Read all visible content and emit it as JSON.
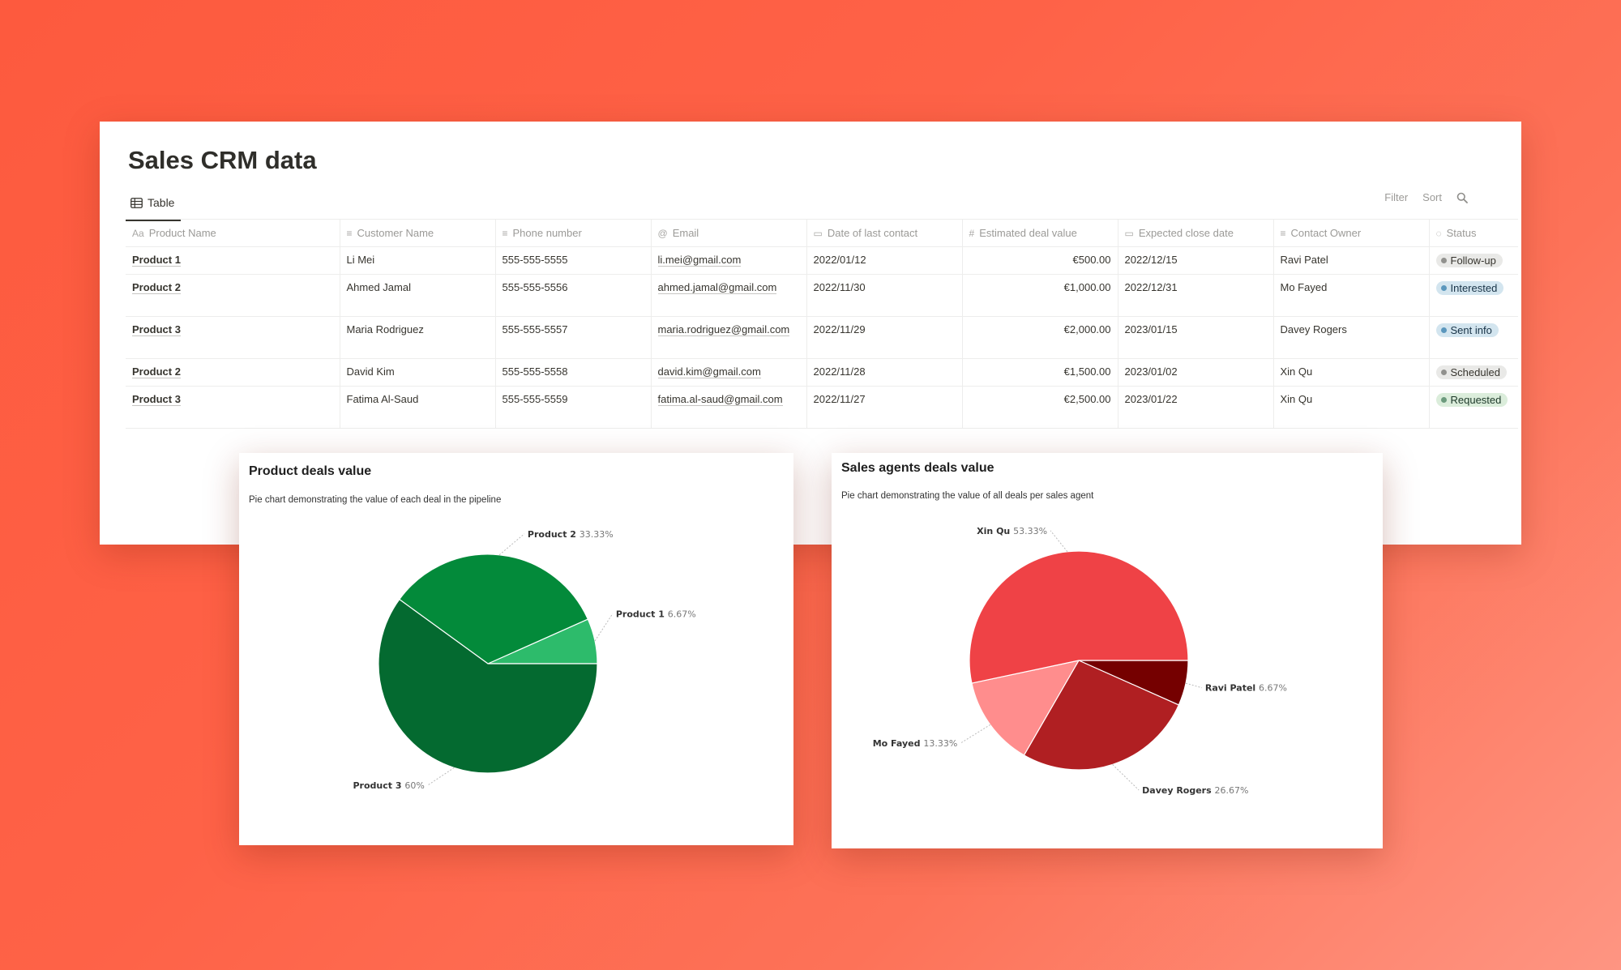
{
  "database": {
    "title": "Sales CRM data",
    "view_tab": "Table",
    "toolbar": {
      "filter": "Filter",
      "sort": "Sort",
      "search_icon": "search-icon"
    },
    "columns": [
      {
        "label": "Product Name",
        "icon": "Aa"
      },
      {
        "label": "Customer Name",
        "icon": "text-icon"
      },
      {
        "label": "Phone number",
        "icon": "text-icon"
      },
      {
        "label": "Email",
        "icon": "@"
      },
      {
        "label": "Date of last contact",
        "icon": "calendar-icon"
      },
      {
        "label": "Estimated deal value",
        "icon": "#"
      },
      {
        "label": "Expected close date",
        "icon": "calendar-icon"
      },
      {
        "label": "Contact Owner",
        "icon": "text-icon"
      },
      {
        "label": "Status",
        "icon": "status-icon"
      }
    ],
    "rows": [
      {
        "product": "Product 1",
        "customer": "Li Mei",
        "phone": "555-555-5555",
        "email": "li.mei@gmail.com",
        "last_contact": "2022/01/12",
        "deal_value": "€500.00",
        "close_date": "2022/12/15",
        "owner": "Ravi Patel",
        "status": "Follow-up",
        "status_color": "gray"
      },
      {
        "product": "Product 2",
        "customer": "Ahmed Jamal",
        "phone": "555-555-5556",
        "email": "ahmed.jamal@gmail.com",
        "last_contact": "2022/11/30",
        "deal_value": "€1,000.00",
        "close_date": "2022/12/31",
        "owner": "Mo Fayed",
        "status": "Interested",
        "status_color": "blue"
      },
      {
        "product": "Product 3",
        "customer": "Maria Rodriguez",
        "phone": "555-555-5557",
        "email": "maria.rodriguez@gmail.com",
        "last_contact": "2022/11/29",
        "deal_value": "€2,000.00",
        "close_date": "2023/01/15",
        "owner": "Davey Rogers",
        "status": "Sent info",
        "status_color": "blue"
      },
      {
        "product": "Product 2",
        "customer": "David Kim",
        "phone": "555-555-5558",
        "email": "david.kim@gmail.com",
        "last_contact": "2022/11/28",
        "deal_value": "€1,500.00",
        "close_date": "2023/01/02",
        "owner": "Xin Qu",
        "status": "Scheduled",
        "status_color": "gray"
      },
      {
        "product": "Product 3",
        "customer": "Fatima Al-Saud",
        "phone": "555-555-5559",
        "email": "fatima.al-saud@gmail.com",
        "last_contact": "2022/11/27",
        "deal_value": "€2,500.00",
        "close_date": "2023/01/22",
        "owner": "Xin Qu",
        "status": "Requested",
        "status_color": "green"
      }
    ]
  },
  "chart_data": [
    {
      "type": "pie",
      "title": "Product deals value",
      "subtitle": "Pie chart demonstrating the value of each deal in the pipeline",
      "slices": [
        {
          "name": "Product 1",
          "value": 6.67,
          "label": "6.67%",
          "color": "#2dbb6b"
        },
        {
          "name": "Product 2",
          "value": 33.33,
          "label": "33.33%",
          "color": "#038a3a"
        },
        {
          "name": "Product 3",
          "value": 60,
          "label": "60%",
          "color": "#046a30"
        }
      ]
    },
    {
      "type": "pie",
      "title": "Sales agents deals value",
      "subtitle": "Pie chart demonstrating the value of all deals per sales agent",
      "slices": [
        {
          "name": "Ravi Patel",
          "value": 6.67,
          "label": "6.67%",
          "color": "#750000"
        },
        {
          "name": "Davey Rogers",
          "value": 26.67,
          "label": "26.67%",
          "color": "#b01f22"
        },
        {
          "name": "Mo Fayed",
          "value": 13.33,
          "label": "13.33%",
          "color": "#ff8d8d"
        },
        {
          "name": "Xin Qu",
          "value": 53.33,
          "label": "53.33%",
          "color": "#ef4246"
        }
      ]
    }
  ]
}
